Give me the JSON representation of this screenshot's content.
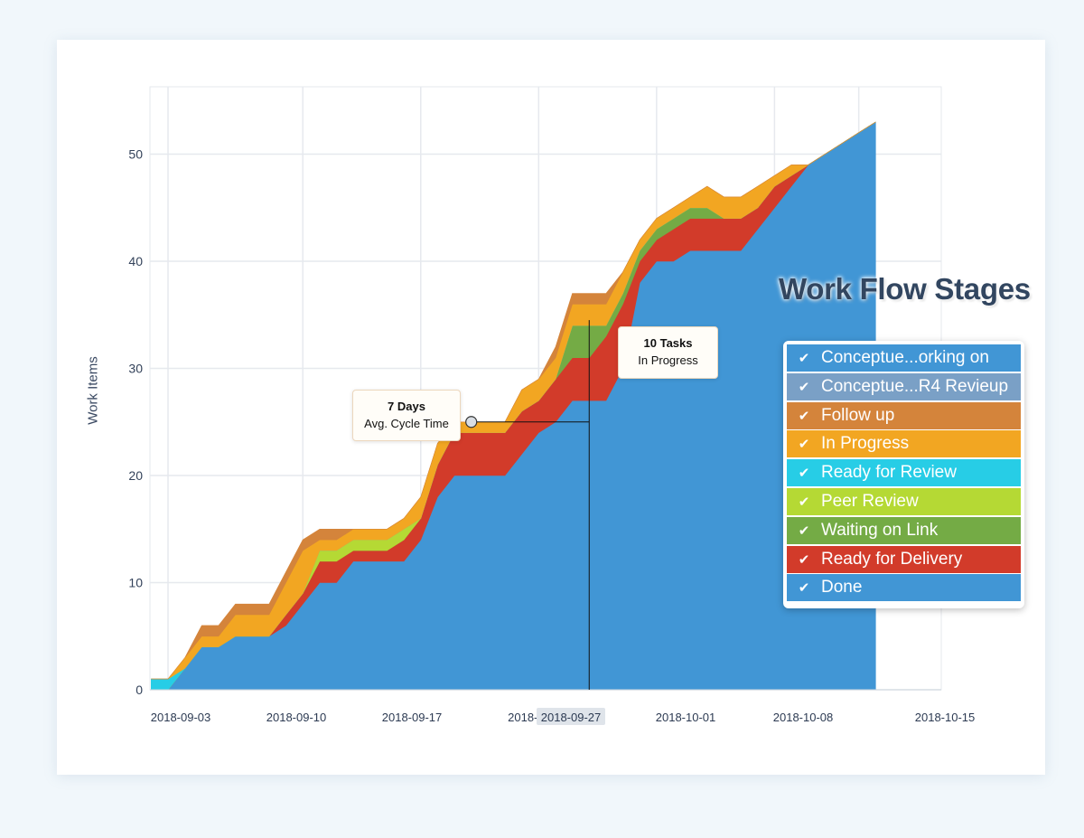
{
  "chart_data": {
    "type": "area",
    "stacked": true,
    "title": "",
    "xlabel": "",
    "ylabel": "Work Items",
    "ylim": [
      0,
      55
    ],
    "yticks": [
      0,
      10,
      20,
      30,
      40,
      50
    ],
    "xlim": [
      "2018-09-03",
      "2018-10-15"
    ],
    "x_tick_labels": [
      "2018-09-03",
      "2018-09-10",
      "2018-09-17",
      "2018-09",
      "2018-09-27",
      "2018-10-01",
      "2018-10-08",
      "2018-10-15"
    ],
    "grid": true,
    "x": [
      "2018-09-02",
      "2018-09-03",
      "2018-09-04",
      "2018-09-05",
      "2018-09-06",
      "2018-09-07",
      "2018-09-08",
      "2018-09-09",
      "2018-09-10",
      "2018-09-11",
      "2018-09-12",
      "2018-09-13",
      "2018-09-14",
      "2018-09-15",
      "2018-09-16",
      "2018-09-17",
      "2018-09-18",
      "2018-09-19",
      "2018-09-20",
      "2018-09-21",
      "2018-09-22",
      "2018-09-23",
      "2018-09-24",
      "2018-09-25",
      "2018-09-26",
      "2018-09-27",
      "2018-09-28",
      "2018-09-29",
      "2018-09-30",
      "2018-10-01",
      "2018-10-02",
      "2018-10-03",
      "2018-10-04",
      "2018-10-05",
      "2018-10-06",
      "2018-10-07",
      "2018-10-08",
      "2018-10-09",
      "2018-10-10",
      "2018-10-11",
      "2018-10-12",
      "2018-10-13",
      "2018-10-14",
      "2018-10-15"
    ],
    "series": [
      {
        "name": "Done",
        "color": "#4196d5",
        "values": [
          0,
          0,
          2,
          4,
          4,
          5,
          5,
          5,
          6,
          8,
          10,
          10,
          12,
          12,
          12,
          12,
          14,
          18,
          20,
          20,
          20,
          20,
          22,
          24,
          25,
          27,
          27,
          27,
          30,
          38,
          40,
          40,
          41,
          41,
          41,
          41,
          43,
          45,
          47,
          49,
          50,
          51,
          52,
          53
        ]
      },
      {
        "name": "Ready for Delivery",
        "color": "#d23b2a",
        "values": [
          0,
          0,
          0,
          0,
          0,
          0,
          0,
          0,
          1,
          1,
          2,
          2,
          1,
          1,
          1,
          2,
          2,
          3,
          4,
          4,
          4,
          4,
          4,
          3,
          4,
          4,
          4,
          6,
          6,
          2,
          2,
          3,
          3,
          3,
          3,
          3,
          2,
          2,
          1,
          0,
          0,
          0,
          0,
          0
        ]
      },
      {
        "name": "Waiting on Link",
        "color": "#74ab45",
        "values": [
          0,
          0,
          0,
          0,
          0,
          0,
          0,
          0,
          0,
          0,
          0,
          0,
          0,
          0,
          0,
          0,
          0,
          0,
          0,
          0,
          0,
          0,
          0,
          0,
          0,
          3,
          3,
          1,
          1,
          1,
          1,
          1,
          1,
          1,
          0,
          0,
          0,
          0,
          0,
          0,
          0,
          0,
          0,
          0
        ]
      },
      {
        "name": "Peer Review",
        "color": "#b5d934",
        "values": [
          0,
          0,
          0,
          0,
          0,
          0,
          0,
          0,
          0,
          0,
          1,
          1,
          1,
          1,
          1,
          1,
          0,
          0,
          0,
          0,
          0,
          0,
          0,
          0,
          0,
          0,
          0,
          0,
          0,
          0,
          0,
          0,
          0,
          0,
          0,
          0,
          0,
          0,
          0,
          0,
          0,
          0,
          0,
          0
        ]
      },
      {
        "name": "Ready for Review",
        "color": "#27cde6",
        "values": [
          1,
          1,
          0,
          0,
          0,
          0,
          0,
          0,
          0,
          0,
          0,
          0,
          0,
          0,
          0,
          0,
          0,
          0,
          0,
          0,
          0,
          0,
          0,
          0,
          0,
          0,
          0,
          0,
          0,
          0,
          0,
          0,
          0,
          0,
          0,
          0,
          0,
          0,
          0,
          0,
          0,
          0,
          0,
          0
        ]
      },
      {
        "name": "In Progress",
        "color": "#f2a622",
        "values": [
          0,
          0,
          1,
          1,
          1,
          2,
          2,
          2,
          3,
          4,
          1,
          1,
          1,
          1,
          1,
          1,
          2,
          2,
          1,
          1,
          1,
          1,
          2,
          2,
          2,
          2,
          2,
          2,
          2,
          1,
          1,
          1,
          1,
          2,
          2,
          2,
          2,
          1,
          1,
          0,
          0,
          0,
          0,
          0
        ]
      },
      {
        "name": "Follow up",
        "color": "#d4843b",
        "values": [
          0,
          0,
          0,
          1,
          1,
          1,
          1,
          1,
          1,
          1,
          1,
          1,
          0,
          0,
          0,
          0,
          0,
          0,
          0,
          0,
          0,
          0,
          0,
          0,
          1,
          1,
          1,
          1,
          0,
          0,
          0,
          0,
          0,
          0,
          0,
          0,
          0,
          0,
          0,
          0,
          0,
          0,
          0,
          0
        ]
      },
      {
        "name": "Conceptue...R4 Revieup",
        "color": "#7aa0c6",
        "values": [
          0,
          0,
          0,
          0,
          0,
          0,
          0,
          0,
          0,
          0,
          0,
          0,
          0,
          0,
          0,
          0,
          0,
          0,
          0,
          0,
          0,
          0,
          0,
          0,
          0,
          0,
          0,
          0,
          0,
          0,
          0,
          0,
          0,
          0,
          0,
          0,
          0,
          0,
          0,
          0,
          0,
          0,
          0,
          0
        ]
      },
      {
        "name": "Conceptue...orking on",
        "color": "#4196d5",
        "values": [
          0,
          0,
          0,
          0,
          0,
          0,
          0,
          0,
          0,
          0,
          0,
          0,
          0,
          0,
          0,
          0,
          0,
          0,
          0,
          0,
          0,
          0,
          0,
          0,
          0,
          0,
          0,
          0,
          0,
          0,
          0,
          0,
          0,
          0,
          0,
          0,
          0,
          0,
          0,
          0,
          0,
          0,
          0,
          0
        ]
      }
    ],
    "annotations": [
      {
        "title": "7 Days",
        "subtitle": "Avg. Cycle Time"
      },
      {
        "title": "10 Tasks",
        "subtitle": "In Progress"
      }
    ],
    "legend_title": "Work Flow Stages",
    "legend_position": "right"
  },
  "legend": {
    "title": "Work Flow Stages",
    "items": [
      {
        "label": "Conceptue...orking on",
        "color": "#4196d5",
        "icon": "check-icon"
      },
      {
        "label": "Conceptue...R4 Revieup",
        "color": "#7aa0c6",
        "icon": "check-icon"
      },
      {
        "label": "Follow up",
        "color": "#d4843b",
        "icon": "check-icon"
      },
      {
        "label": "In Progress",
        "color": "#f2a622",
        "icon": "check-icon"
      },
      {
        "label": "Ready for Review",
        "color": "#27cde6",
        "icon": "check-icon"
      },
      {
        "label": "Peer Review",
        "color": "#b5d934",
        "icon": "check-icon"
      },
      {
        "label": "Waiting on Link",
        "color": "#74ab45",
        "icon": "check-icon"
      },
      {
        "label": "Ready for Delivery",
        "color": "#d23b2a",
        "icon": "check-icon"
      },
      {
        "label": "Done",
        "color": "#4196d5",
        "icon": "check-icon"
      }
    ]
  },
  "callouts": {
    "cycle_title": "7 Days",
    "cycle_sub": "Avg. Cycle Time",
    "tasks_title": "10 Tasks",
    "tasks_sub": "In Progress"
  },
  "highlighted_x_label": "2018-09-27"
}
